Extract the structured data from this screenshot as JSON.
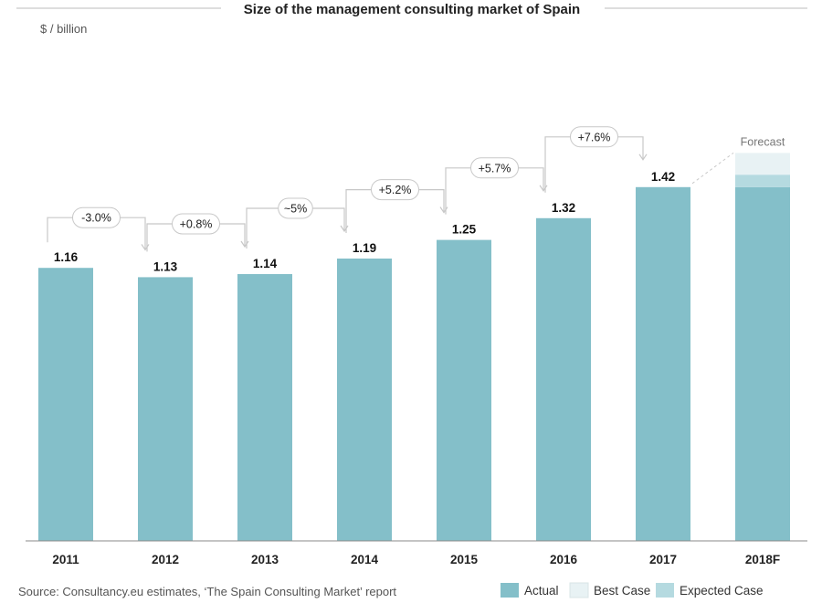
{
  "chart_data": {
    "type": "bar",
    "title": "Size of the management consulting market of Spain",
    "ylabel": "$ / billion",
    "xlabel": "",
    "ylim": [
      0,
      1.55
    ],
    "grid": false,
    "categories": [
      "2011",
      "2012",
      "2013",
      "2014",
      "2015",
      "2016",
      "2017",
      "2018F"
    ],
    "values": [
      1.16,
      1.13,
      1.14,
      1.19,
      1.25,
      1.32,
      1.42,
      null
    ],
    "value_labels": [
      "1.16",
      "1.13",
      "1.14",
      "1.19",
      "1.25",
      "1.32",
      "1.42",
      ""
    ],
    "forecast": {
      "category": "2018F",
      "label": "Forecast",
      "actual_base": 1.42,
      "expected_case": 1.46,
      "best_case": 1.53
    },
    "growth_annotations": [
      {
        "from": "2011",
        "to": "2012",
        "label": "-3.0%"
      },
      {
        "from": "2012",
        "to": "2013",
        "label": "+0.8%"
      },
      {
        "from": "2013",
        "to": "2014",
        "label": "~5%"
      },
      {
        "from": "2014",
        "to": "2015",
        "label": "+5.2%"
      },
      {
        "from": "2015",
        "to": "2016",
        "label": "+5.7%"
      },
      {
        "from": "2016",
        "to": "2017",
        "label": "+7.6%"
      }
    ],
    "legend": {
      "placement": "bottom-right",
      "items": [
        {
          "name": "Actual",
          "color": "#84bfc9"
        },
        {
          "name": "Best Case",
          "color": "#e8f2f4"
        },
        {
          "name": "Expected Case",
          "color": "#b5dae0"
        }
      ]
    },
    "source": "Source: Consultancy.eu estimates, ‘The Spain Consulting Market’ report",
    "colors": {
      "actual": "#84bfc9",
      "best_case": "#e8f2f4",
      "expected_case": "#b5dae0",
      "connector": "#c8c8c8",
      "axis": "#888888"
    }
  }
}
